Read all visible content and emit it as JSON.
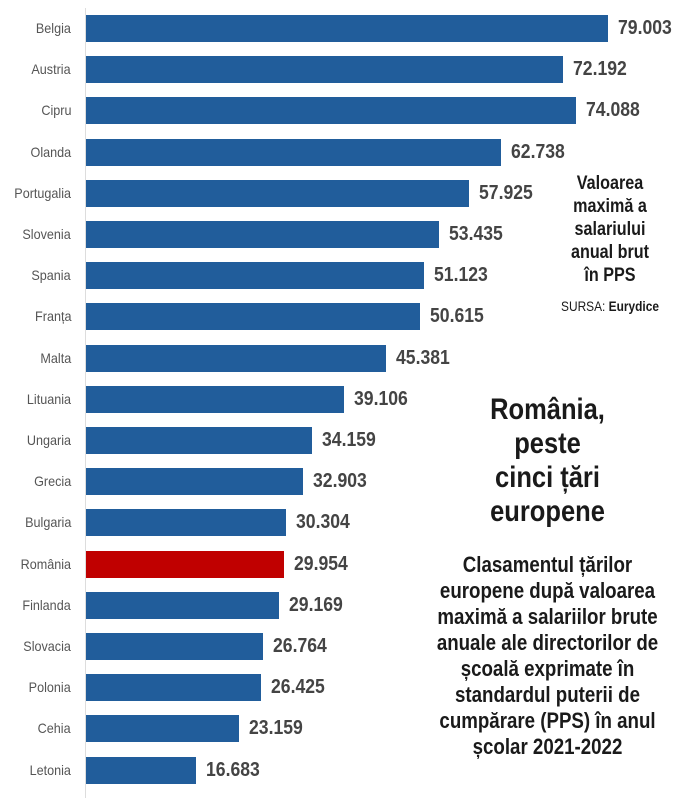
{
  "chart_data": {
    "type": "bar",
    "orientation": "horizontal",
    "categories": [
      "Belgia",
      "Austria",
      "Cipru",
      "Olanda",
      "Portugalia",
      "Slovenia",
      "Spania",
      "Franța",
      "Malta",
      "Lituania",
      "Ungaria",
      "Grecia",
      "Bulgaria",
      "România",
      "Finlanda",
      "Slovacia",
      "Polonia",
      "Cehia",
      "Letonia"
    ],
    "values": [
      79.003,
      72.192,
      74.088,
      62.738,
      57.925,
      53.435,
      51.123,
      50.615,
      45.381,
      39.106,
      34.159,
      32.903,
      30.304,
      29.954,
      29.169,
      26.764,
      26.425,
      23.159,
      16.683
    ],
    "value_labels": [
      "79.003",
      "72.192",
      "74.088",
      "62.738",
      "57.925",
      "53.435",
      "51.123",
      "50.615",
      "45.381",
      "39.106",
      "34.159",
      "32.903",
      "30.304",
      "29.954",
      "29.169",
      "26.764",
      "26.425",
      "23.159",
      "16.683"
    ],
    "highlight": "România",
    "colors": {
      "default": "#215d9b",
      "highlight": "#c00000"
    },
    "xlim": [
      0,
      80
    ],
    "legend_note": {
      "lines": [
        "Valoarea",
        "maximă a",
        "salariului",
        "anual brut",
        "în PPS"
      ],
      "source_label": "SURSA:",
      "source": "Eurydice"
    },
    "title": [
      "România,",
      "peste",
      "cinci țări",
      "europene"
    ],
    "subtitle": [
      "Clasamentul țărilor",
      "europene după valoarea",
      "maximă a salariilor brute",
      "anuale ale directorilor de",
      "școală exprimate în",
      "standardul puterii de",
      "cumpărare (PPS) în anul",
      "școlar 2021-2022"
    ]
  }
}
